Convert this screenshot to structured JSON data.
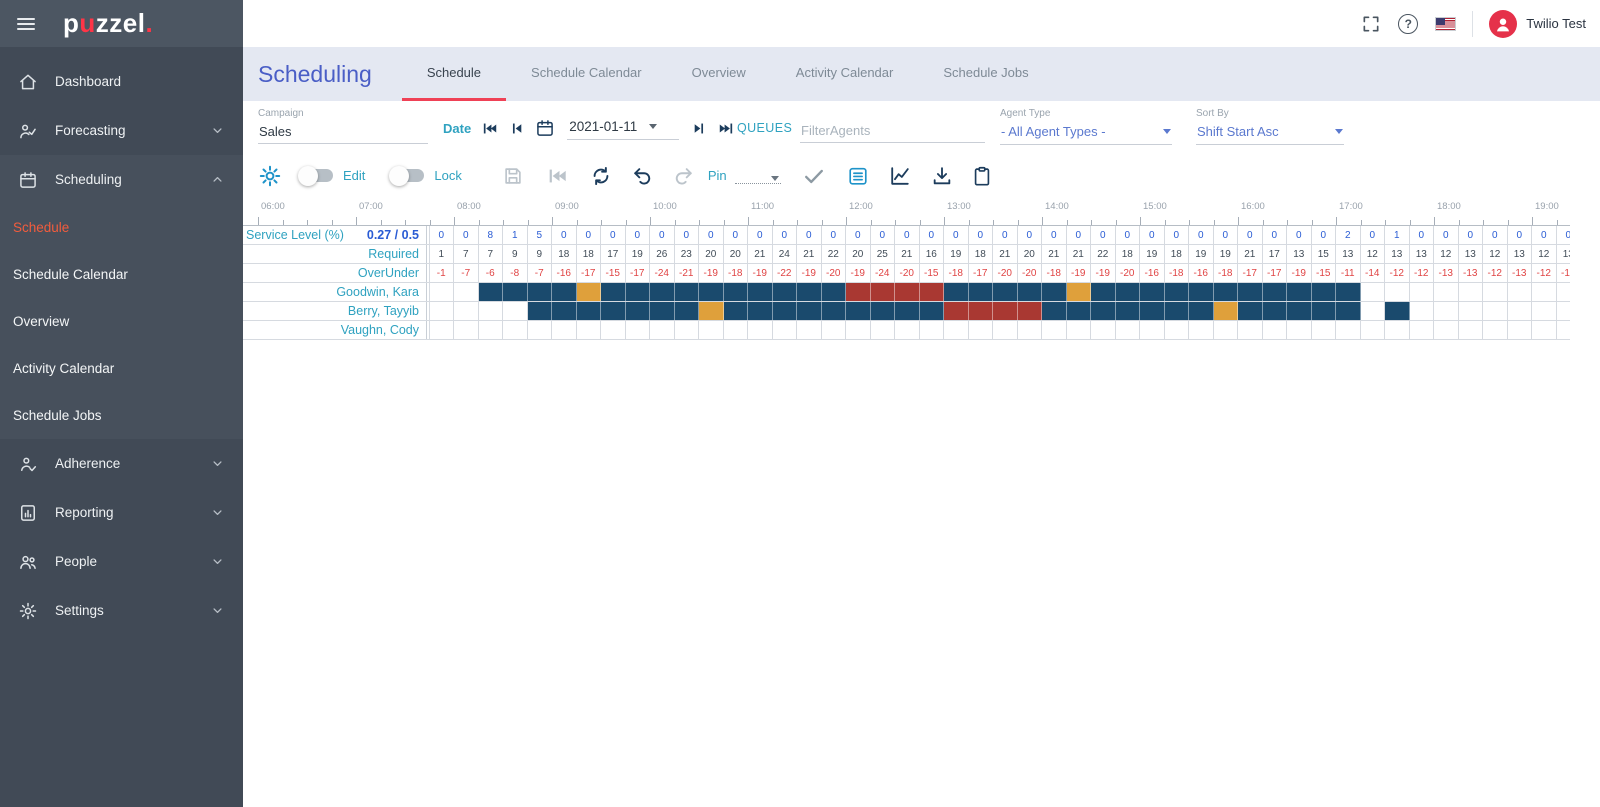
{
  "brand": {
    "logo_prefix": "p",
    "logo_accent": "u",
    "logo_suffix": "zzel",
    "logo_dot": "."
  },
  "topbar": {
    "user_name": "Twilio Test"
  },
  "sidebar": {
    "items": [
      {
        "id": "dashboard",
        "label": "Dashboard",
        "icon": "home-icon",
        "expandable": false,
        "expanded": false
      },
      {
        "id": "forecasting",
        "label": "Forecasting",
        "icon": "forecasting-icon",
        "expandable": true,
        "expanded": false
      },
      {
        "id": "scheduling",
        "label": "Scheduling",
        "icon": "scheduling-icon",
        "expandable": true,
        "expanded": true,
        "children": [
          {
            "label": "Schedule",
            "active": true
          },
          {
            "label": "Schedule Calendar",
            "active": false
          },
          {
            "label": "Overview",
            "active": false
          },
          {
            "label": "Activity Calendar",
            "active": false
          },
          {
            "label": "Schedule Jobs",
            "active": false
          }
        ]
      },
      {
        "id": "adherence",
        "label": "Adherence",
        "icon": "adherence-icon",
        "expandable": true,
        "expanded": false
      },
      {
        "id": "reporting",
        "label": "Reporting",
        "icon": "reporting-icon",
        "expandable": true,
        "expanded": false
      },
      {
        "id": "people",
        "label": "People",
        "icon": "people-icon",
        "expandable": true,
        "expanded": false
      },
      {
        "id": "settings",
        "label": "Settings",
        "icon": "settings-icon",
        "expandable": true,
        "expanded": false
      }
    ]
  },
  "page": {
    "title": "Scheduling",
    "tabs": [
      {
        "label": "Schedule",
        "active": true
      },
      {
        "label": "Schedule Calendar",
        "active": false
      },
      {
        "label": "Overview",
        "active": false
      },
      {
        "label": "Activity Calendar",
        "active": false
      },
      {
        "label": "Schedule Jobs",
        "active": false
      }
    ]
  },
  "filters": {
    "campaign": {
      "label": "Campaign",
      "value": "Sales"
    },
    "date": {
      "label": "Date",
      "value": "2021-01-11"
    },
    "queues_label": "QUEUES",
    "filter_agents": {
      "placeholder": "FilterAgents"
    },
    "agent_type": {
      "label": "Agent Type",
      "value": "- All Agent Types -"
    },
    "sort_by": {
      "label": "Sort By",
      "value": "Shift Start Asc"
    }
  },
  "toolbar": {
    "edit": {
      "label": "Edit",
      "on": false
    },
    "lock": {
      "label": "Lock",
      "on": false
    },
    "pin": {
      "label": "Pin",
      "value": ""
    }
  },
  "schedule_grid": {
    "interval_minutes": 15,
    "grid_start_time": "07:30",
    "column_count": 48,
    "timeline_hours": [
      "06:00",
      "07:00",
      "08:00",
      "09:00",
      "10:00",
      "11:00",
      "12:00",
      "13:00",
      "14:00",
      "15:00",
      "16:00",
      "17:00",
      "18:00",
      "19:00"
    ],
    "summary_rows": [
      {
        "label": "Service Level (%)",
        "summary": "0.27 / 0.5",
        "value_style": "blue",
        "values": [
          0,
          0,
          0,
          8,
          1,
          5,
          0,
          0,
          0,
          0,
          0,
          0,
          0,
          0,
          0,
          0,
          0,
          0,
          0,
          0,
          0,
          0,
          0,
          0,
          0,
          0,
          0,
          0,
          0,
          0,
          0,
          0,
          0,
          0,
          0,
          0,
          0,
          0,
          2,
          0,
          1,
          0,
          0,
          0,
          0,
          0,
          0,
          0
        ]
      },
      {
        "label": "Required",
        "summary": "",
        "value_style": "dark",
        "values": [
          1,
          1,
          7,
          7,
          9,
          9,
          18,
          18,
          17,
          19,
          26,
          23,
          20,
          20,
          21,
          24,
          21,
          22,
          20,
          25,
          21,
          16,
          19,
          18,
          21,
          20,
          21,
          21,
          22,
          18,
          19,
          18,
          19,
          19,
          21,
          17,
          13,
          15,
          13,
          12,
          13,
          13,
          12,
          13,
          12,
          13,
          12,
          13
        ]
      },
      {
        "label": "OverUnder",
        "summary": "",
        "value_style": "red",
        "values": [
          -1,
          -1,
          -7,
          -6,
          -8,
          -7,
          -16,
          -17,
          -15,
          -17,
          -24,
          -21,
          -19,
          -18,
          -19,
          -22,
          -19,
          -20,
          -19,
          -24,
          -20,
          -15,
          -18,
          -17,
          -20,
          -20,
          -18,
          -19,
          -19,
          -20,
          -16,
          -18,
          -16,
          -18,
          -17,
          -17,
          -19,
          -15,
          -11,
          -14,
          -12,
          -12,
          -13,
          -13,
          -12,
          -13,
          -12,
          -13
        ]
      }
    ],
    "agents": [
      {
        "name": "Goodwin, Kara",
        "segments": [
          {
            "start": "08:15",
            "end": "09:15",
            "type": "work"
          },
          {
            "start": "09:15",
            "end": "09:30",
            "type": "break"
          },
          {
            "start": "09:30",
            "end": "12:00",
            "type": "work"
          },
          {
            "start": "12:00",
            "end": "13:00",
            "type": "lunch"
          },
          {
            "start": "13:00",
            "end": "14:15",
            "type": "work"
          },
          {
            "start": "14:15",
            "end": "14:30",
            "type": "break"
          },
          {
            "start": "14:30",
            "end": "17:15",
            "type": "work"
          }
        ]
      },
      {
        "name": "Berry, Tayyib",
        "segments": [
          {
            "start": "08:45",
            "end": "10:30",
            "type": "work"
          },
          {
            "start": "10:30",
            "end": "10:45",
            "type": "break"
          },
          {
            "start": "10:45",
            "end": "13:00",
            "type": "work"
          },
          {
            "start": "13:00",
            "end": "14:00",
            "type": "lunch"
          },
          {
            "start": "14:00",
            "end": "15:45",
            "type": "work"
          },
          {
            "start": "15:45",
            "end": "16:00",
            "type": "break"
          },
          {
            "start": "16:00",
            "end": "17:15",
            "type": "work"
          },
          {
            "start": "17:30",
            "end": "17:45",
            "type": "work"
          }
        ]
      },
      {
        "name": "Vaughn, Cody",
        "segments": []
      }
    ],
    "colors": {
      "work": "#1a4a6d",
      "break": "#dfa03b",
      "lunch": "#a93832"
    }
  }
}
